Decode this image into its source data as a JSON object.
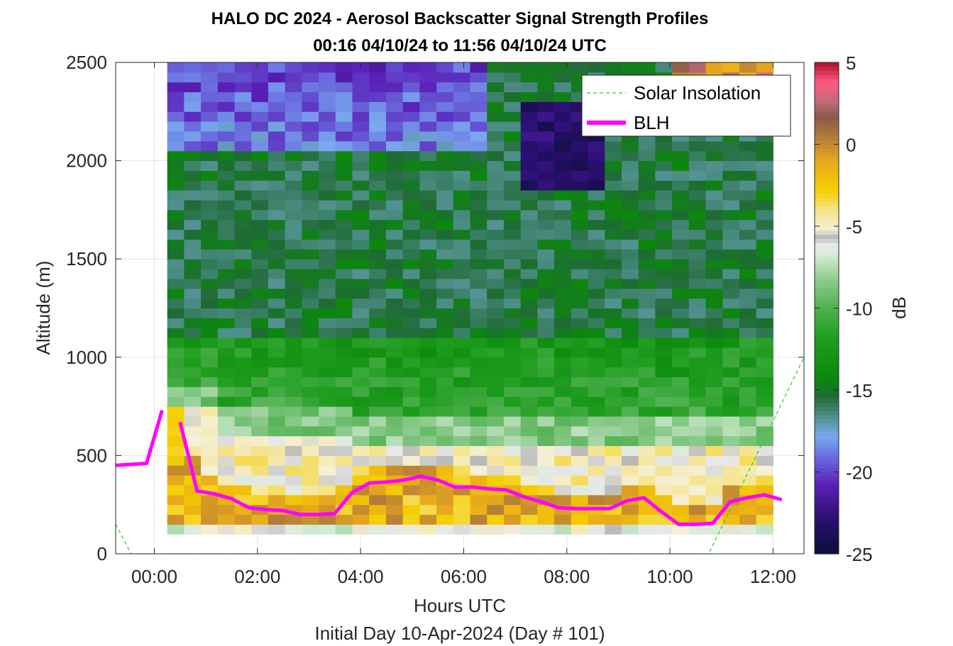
{
  "chart_data": {
    "type": "heatmap",
    "title_line1": "HALO DC 2024 - Aerosol Backscatter Signal Strength Profiles",
    "title_line2": "00:16 04/10/24 to 11:56 04/10/24  UTC",
    "xlabel": "Hours UTC",
    "xlabel2": "Initial Day 10-Apr-2024 (Day # 101)",
    "ylabel": "Altitude (m)",
    "colorbar_label": "dB",
    "xlim": [
      -0.75,
      12.6
    ],
    "ylim": [
      0,
      2500
    ],
    "xticks": [
      0,
      2,
      4,
      6,
      8,
      10,
      12
    ],
    "xtick_labels": [
      "00:00",
      "02:00",
      "04:00",
      "06:00",
      "08:00",
      "10:00",
      "12:00"
    ],
    "yticks": [
      0,
      500,
      1000,
      1500,
      2000,
      2500
    ],
    "ytick_labels": [
      "0",
      "500",
      "1000",
      "1500",
      "2000",
      "2500"
    ],
    "clim": [
      -25,
      5
    ],
    "cticks": [
      5,
      0,
      -5,
      -10,
      -15,
      -20,
      -25
    ],
    "ctick_labels": [
      "5",
      "0",
      "-5",
      "-10",
      "-15",
      "-20",
      "-25"
    ],
    "grid": true,
    "legend_placement": "top-right",
    "legend": [
      {
        "name": "Solar Insolation",
        "style": "dashed",
        "color": "#22cc22"
      },
      {
        "name": "BLH",
        "style": "solid",
        "color": "#ff00ff"
      }
    ],
    "heatmap_x_range": [
      0.25,
      12.0
    ],
    "heatmap_y_range": [
      100,
      2500
    ],
    "series": [
      {
        "name": "BLH",
        "color": "#ff00ff",
        "segments": [
          [
            [
              -0.75,
              450
            ],
            [
              -0.15,
              460
            ],
            [
              0.15,
              730
            ]
          ],
          [
            [
              0.5,
              670
            ],
            [
              0.83,
              320
            ],
            [
              1.17,
              305
            ],
            [
              1.5,
              280
            ],
            [
              1.83,
              235
            ],
            [
              2.17,
              225
            ],
            [
              2.5,
              220
            ],
            [
              2.83,
              200
            ],
            [
              3.17,
              200
            ],
            [
              3.5,
              205
            ],
            [
              3.83,
              310
            ],
            [
              4.17,
              360
            ],
            [
              4.5,
              365
            ],
            [
              4.83,
              375
            ],
            [
              5.17,
              395
            ],
            [
              5.5,
              375
            ],
            [
              5.83,
              340
            ],
            [
              6.17,
              340
            ],
            [
              6.5,
              330
            ],
            [
              6.83,
              325
            ],
            [
              7.17,
              290
            ],
            [
              7.5,
              265
            ],
            [
              7.83,
              235
            ],
            [
              8.17,
              230
            ],
            [
              8.5,
              230
            ],
            [
              8.83,
              230
            ],
            [
              9.17,
              270
            ],
            [
              9.5,
              285
            ],
            [
              9.83,
              215
            ],
            [
              10.17,
              150
            ],
            [
              10.5,
              150
            ],
            [
              10.83,
              155
            ],
            [
              11.17,
              265
            ],
            [
              11.5,
              285
            ],
            [
              11.83,
              300
            ],
            [
              12.17,
              275
            ]
          ]
        ]
      },
      {
        "name": "Solar Insolation",
        "color": "#22cc22",
        "points": [
          [
            -0.75,
            150
          ],
          [
            -0.45,
            0
          ],
          [
            10.75,
            0
          ],
          [
            12.6,
            1000
          ]
        ]
      }
    ],
    "colormap": [
      [
        0.0,
        "#0b0f3a"
      ],
      [
        0.07,
        "#2a0f6e"
      ],
      [
        0.14,
        "#5a1fb8"
      ],
      [
        0.2,
        "#6a6fe0"
      ],
      [
        0.24,
        "#7aa8f0"
      ],
      [
        0.28,
        "#4f8f8a"
      ],
      [
        0.32,
        "#1f6a35"
      ],
      [
        0.36,
        "#0a8a0a"
      ],
      [
        0.44,
        "#1f9d1f"
      ],
      [
        0.5,
        "#4fb04f"
      ],
      [
        0.56,
        "#8fcc8f"
      ],
      [
        0.61,
        "#d8ecd8"
      ],
      [
        0.63,
        "#e8e8e8"
      ],
      [
        0.645,
        "#b8b8b8"
      ],
      [
        0.66,
        "#f5f0d8"
      ],
      [
        0.7,
        "#f5e38a"
      ],
      [
        0.74,
        "#f5d000"
      ],
      [
        0.8,
        "#e8a81c"
      ],
      [
        0.85,
        "#b07a3a"
      ],
      [
        0.89,
        "#8a5a48"
      ],
      [
        0.92,
        "#c06a78"
      ],
      [
        0.96,
        "#ff5a84"
      ],
      [
        1.0,
        "#b0102a"
      ]
    ]
  }
}
